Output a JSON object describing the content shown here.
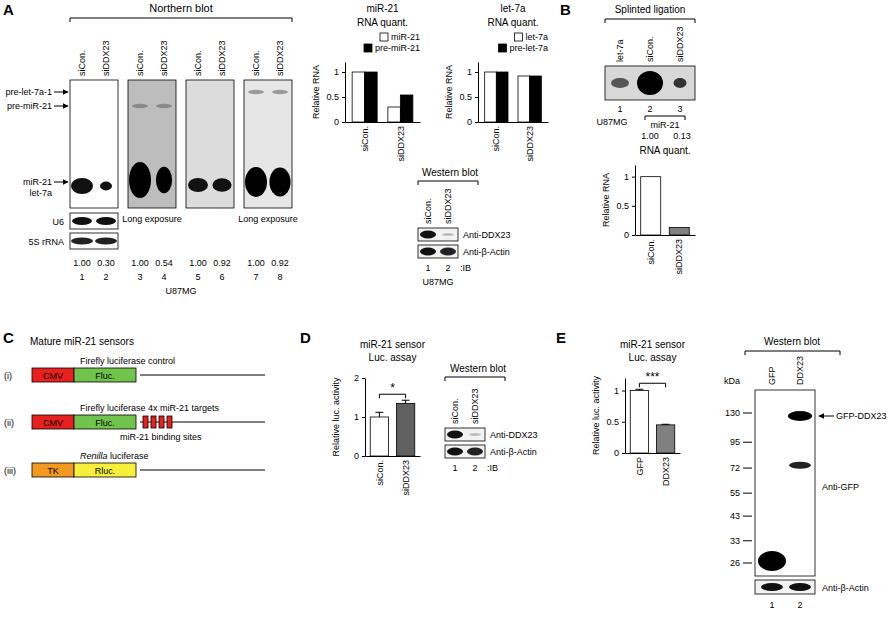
{
  "chart_data": [
    {
      "type": "bar",
      "title": "miR-21",
      "subtitle": "RNA quant.",
      "y_label": "Relative RNA",
      "categories": [
        "siCon.",
        "siDDX23"
      ],
      "series": [
        {
          "name": "miR-21",
          "color": "#ffffff",
          "values": [
            1,
            0.3
          ]
        },
        {
          "name": "pre-miR-21",
          "color": "#000000",
          "values": [
            1,
            0.54
          ]
        }
      ],
      "ylim": [
        0,
        1.2
      ],
      "yticks": [
        0,
        0.5,
        1
      ],
      "legend": "top-right"
    },
    {
      "type": "bar",
      "title": "let-7a",
      "subtitle": "RNA quant.",
      "y_label": "Relative RNA",
      "categories": [
        "siCon.",
        "siDDX23"
      ],
      "series": [
        {
          "name": "let-7a",
          "color": "#ffffff",
          "values": [
            1,
            0.92
          ]
        },
        {
          "name": "pre-let-7a",
          "color": "#000000",
          "values": [
            1,
            0.92
          ]
        }
      ],
      "ylim": [
        0,
        1.2
      ],
      "yticks": [
        0,
        0.5,
        1
      ],
      "legend": "top-right"
    },
    {
      "type": "bar",
      "title": "RNA quant.",
      "y_label": "Relative RNA",
      "categories": [
        "siCon.",
        "siDDX23"
      ],
      "values": [
        1,
        0.13
      ],
      "colors": [
        "#ffffff",
        "#808080"
      ],
      "ylim": [
        0,
        1.2
      ],
      "yticks": [
        0,
        0.5,
        1
      ]
    },
    {
      "type": "bar",
      "title": "miR-21 sensor",
      "subtitle": "Luc. assay",
      "y_label": "Relative luc. activity",
      "categories": [
        "siCon.",
        "siDDX23"
      ],
      "values": [
        1,
        1.35
      ],
      "errors": [
        0.12,
        0.08
      ],
      "colors": [
        "#ffffff",
        "#606060"
      ],
      "ylim": [
        0,
        2
      ],
      "yticks": [
        0,
        1,
        2
      ],
      "annotation": "*"
    },
    {
      "type": "bar",
      "title": "miR-21 sensor",
      "subtitle": "Luc. assay",
      "y_label": "Relative luc. activity",
      "categories": [
        "GFP",
        "DDX23"
      ],
      "values": [
        1,
        0.45
      ],
      "errors": [
        0.02,
        0.01
      ],
      "colors": [
        "#ffffff",
        "#808080"
      ],
      "ylim": [
        0,
        1.2
      ],
      "yticks": [
        0,
        0.5,
        1
      ],
      "annotation": "***"
    }
  ],
  "figure": {
    "A": {
      "label": "A",
      "northern": {
        "title": "Northern blot",
        "lanes": [
          "siCon.",
          "siDDX23",
          "siCon.",
          "siDDX23",
          "siCon.",
          "siDDX23",
          "siCon.",
          "siDDX23"
        ],
        "precursors": [
          "pre-let-7a-1",
          "pre-miR-21"
        ],
        "matures": [
          "miR-21",
          "let-7a"
        ],
        "loading_controls": [
          "U6",
          "5S rRNA"
        ],
        "exposure_notes": [
          "Long exposure",
          "Long exposure"
        ],
        "quant": [
          "1.00",
          "0.30",
          "1.00",
          "0.54",
          "1.00",
          "0.92",
          "1.00",
          "0.92"
        ],
        "lane_numbers": [
          "1",
          "2",
          "3",
          "4",
          "5",
          "6",
          "7",
          "8"
        ],
        "cell_line": "U87MG"
      },
      "western": {
        "title": "Western blot",
        "lanes": [
          "siCon.",
          "siDDX23"
        ],
        "antibodies": [
          "Anti-DDX23",
          "Anti-β-Actin"
        ],
        "lane_numbers": [
          "1",
          "2"
        ],
        "method": ":IB",
        "cell_line": "U87MG"
      }
    },
    "B": {
      "label": "B",
      "title": "Splinted ligation",
      "lanes": [
        "let-7a",
        "siCon.",
        "siDDX23"
      ],
      "lane_numbers": [
        "1",
        "2",
        "3"
      ],
      "cell_line": "U87MG",
      "target": "miR-21",
      "quant": [
        "1.00",
        "0.13"
      ]
    },
    "C": {
      "label": "C",
      "title": "Mature miR-21 sensors",
      "constructs": [
        {
          "index": "(i)",
          "promoter": "CMV",
          "reporter": "Fluc.",
          "description": "Firefly luciferase control",
          "colors": [
            "#e8201e",
            "#70c44c"
          ]
        },
        {
          "index": "(ii)",
          "promoter": "CMV",
          "reporter": "Fluc.",
          "description": "Firefly luciferase 4x miR-21 targets",
          "sites": 4,
          "sites_label": "miR-21 binding sites",
          "colors": [
            "#e8201e",
            "#70c44c",
            "#e8201e"
          ]
        },
        {
          "index": "(iii)",
          "promoter": "TK",
          "reporter": "Rluc.",
          "description": "Renilla luciferase",
          "colors": [
            "#f39a1e",
            "#f6f03a"
          ]
        }
      ]
    },
    "D": {
      "label": "D",
      "western": {
        "title": "Western blot",
        "lanes": [
          "siCon.",
          "siDDX23"
        ],
        "antibodies": [
          "Anti-DDX23",
          "Anti-β-Actin"
        ],
        "lane_numbers": [
          "1",
          "2"
        ],
        "method": ":IB"
      }
    },
    "E": {
      "label": "E",
      "western": {
        "title": "Western blot",
        "lanes": [
          "GFP",
          "DDX23"
        ],
        "unit": "kDa",
        "markers": [
          130,
          95,
          72,
          55,
          43,
          33,
          26
        ],
        "arrow_label": "GFP-DDX23",
        "antibodies": [
          "Anti-GFP",
          "Anti-β-Actin"
        ],
        "lane_numbers": [
          "1",
          "2"
        ]
      }
    }
  }
}
